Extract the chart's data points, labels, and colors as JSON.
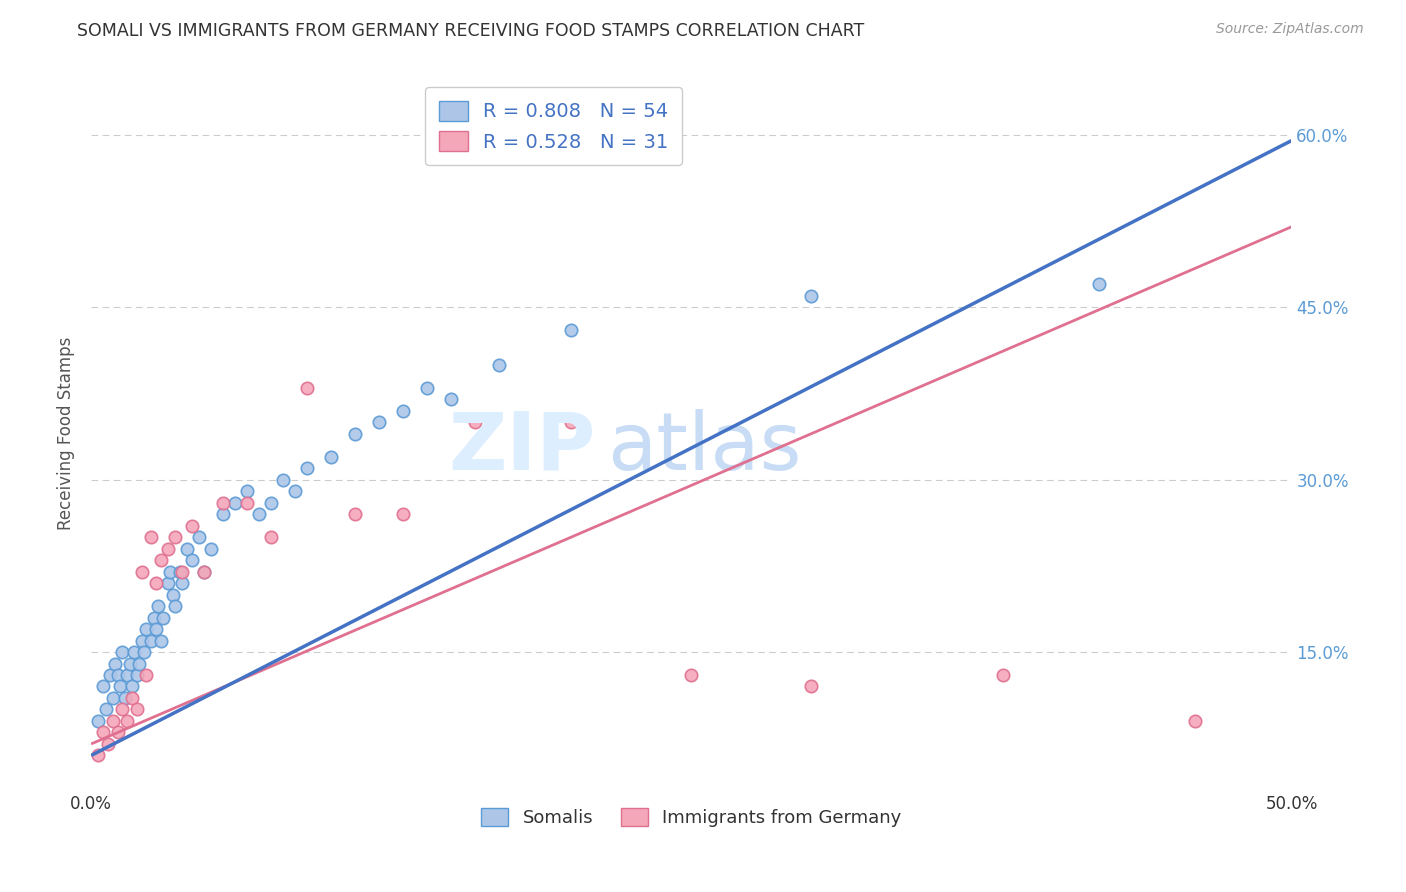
{
  "title": "SOMALI VS IMMIGRANTS FROM GERMANY RECEIVING FOOD STAMPS CORRELATION CHART",
  "source": "Source: ZipAtlas.com",
  "ylabel": "Receiving Food Stamps",
  "R_somali": 0.808,
  "N_somali": 54,
  "R_germany": 0.528,
  "N_germany": 31,
  "legend_labels": [
    "Somalis",
    "Immigrants from Germany"
  ],
  "somali_color": "#adc6e8",
  "germany_color": "#f4a7b9",
  "somali_edge_color": "#5b9bd5",
  "germany_edge_color": "#e07090",
  "line_color_somali": "#4472c4",
  "line_color_germany": "#e07090",
  "watermark_color": "#ddeeff",
  "background_color": "#ffffff",
  "grid_color": "#cccccc",
  "title_color": "#333333",
  "right_label_color": "#5b9bd5",
  "marker_size": 80,
  "somali_x": [
    0.003,
    0.005,
    0.006,
    0.008,
    0.009,
    0.01,
    0.011,
    0.012,
    0.013,
    0.014,
    0.015,
    0.016,
    0.017,
    0.018,
    0.019,
    0.02,
    0.021,
    0.022,
    0.023,
    0.025,
    0.026,
    0.027,
    0.028,
    0.029,
    0.03,
    0.032,
    0.033,
    0.034,
    0.035,
    0.037,
    0.038,
    0.04,
    0.042,
    0.045,
    0.047,
    0.05,
    0.055,
    0.06,
    0.065,
    0.07,
    0.075,
    0.08,
    0.085,
    0.09,
    0.1,
    0.11,
    0.12,
    0.13,
    0.14,
    0.15,
    0.17,
    0.2,
    0.3,
    0.42
  ],
  "somali_y": [
    0.09,
    0.12,
    0.1,
    0.13,
    0.11,
    0.14,
    0.13,
    0.12,
    0.15,
    0.11,
    0.13,
    0.14,
    0.12,
    0.15,
    0.13,
    0.14,
    0.16,
    0.15,
    0.17,
    0.16,
    0.18,
    0.17,
    0.19,
    0.16,
    0.18,
    0.21,
    0.22,
    0.2,
    0.19,
    0.22,
    0.21,
    0.24,
    0.23,
    0.25,
    0.22,
    0.24,
    0.27,
    0.28,
    0.29,
    0.27,
    0.28,
    0.3,
    0.29,
    0.31,
    0.32,
    0.34,
    0.35,
    0.36,
    0.38,
    0.37,
    0.4,
    0.43,
    0.46,
    0.47
  ],
  "germany_x": [
    0.003,
    0.005,
    0.007,
    0.009,
    0.011,
    0.013,
    0.015,
    0.017,
    0.019,
    0.021,
    0.023,
    0.025,
    0.027,
    0.029,
    0.032,
    0.035,
    0.038,
    0.042,
    0.047,
    0.055,
    0.065,
    0.075,
    0.09,
    0.11,
    0.13,
    0.16,
    0.2,
    0.25,
    0.3,
    0.38,
    0.46
  ],
  "germany_y": [
    0.06,
    0.08,
    0.07,
    0.09,
    0.08,
    0.1,
    0.09,
    0.11,
    0.1,
    0.22,
    0.13,
    0.25,
    0.21,
    0.23,
    0.24,
    0.25,
    0.22,
    0.26,
    0.22,
    0.28,
    0.28,
    0.25,
    0.38,
    0.27,
    0.27,
    0.35,
    0.35,
    0.13,
    0.12,
    0.13,
    0.09
  ],
  "xlim": [
    0.0,
    0.5
  ],
  "ylim": [
    0.03,
    0.65
  ],
  "somali_line_x": [
    0.0,
    0.5
  ],
  "somali_line_y": [
    0.06,
    0.595
  ],
  "germany_line_x": [
    0.0,
    0.5
  ],
  "germany_line_y": [
    0.07,
    0.52
  ]
}
